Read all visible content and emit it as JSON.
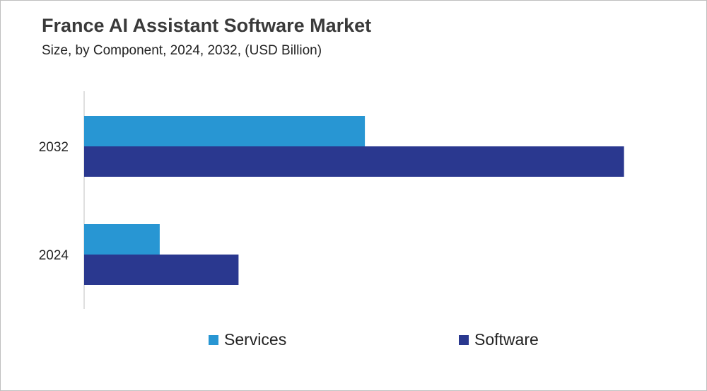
{
  "header": {
    "title": "France AI Assistant Software Market",
    "subtitle": "Size, by Component, 2024, 2032, (USD Billion)"
  },
  "colors": {
    "services": "#2896d3",
    "software": "#2a388f",
    "axis": "#bfbfbf",
    "text": "#222222"
  },
  "legend": {
    "items": [
      {
        "label": "Services",
        "color": "#2896d3"
      },
      {
        "label": "Software",
        "color": "#2a388f"
      }
    ],
    "position": "bottom"
  },
  "chart_data": {
    "type": "bar",
    "orientation": "horizontal",
    "categories": [
      "2032",
      "2024"
    ],
    "series": [
      {
        "name": "Services",
        "values": [
          2.6,
          0.7
        ]
      },
      {
        "name": "Software",
        "values": [
          5.0,
          1.43
        ]
      }
    ],
    "xlim": [
      0,
      5.5
    ],
    "grid": false,
    "title": "France AI Assistant Software Market",
    "subtitle": "Size, by Component, 2024, 2032, (USD Billion)"
  }
}
